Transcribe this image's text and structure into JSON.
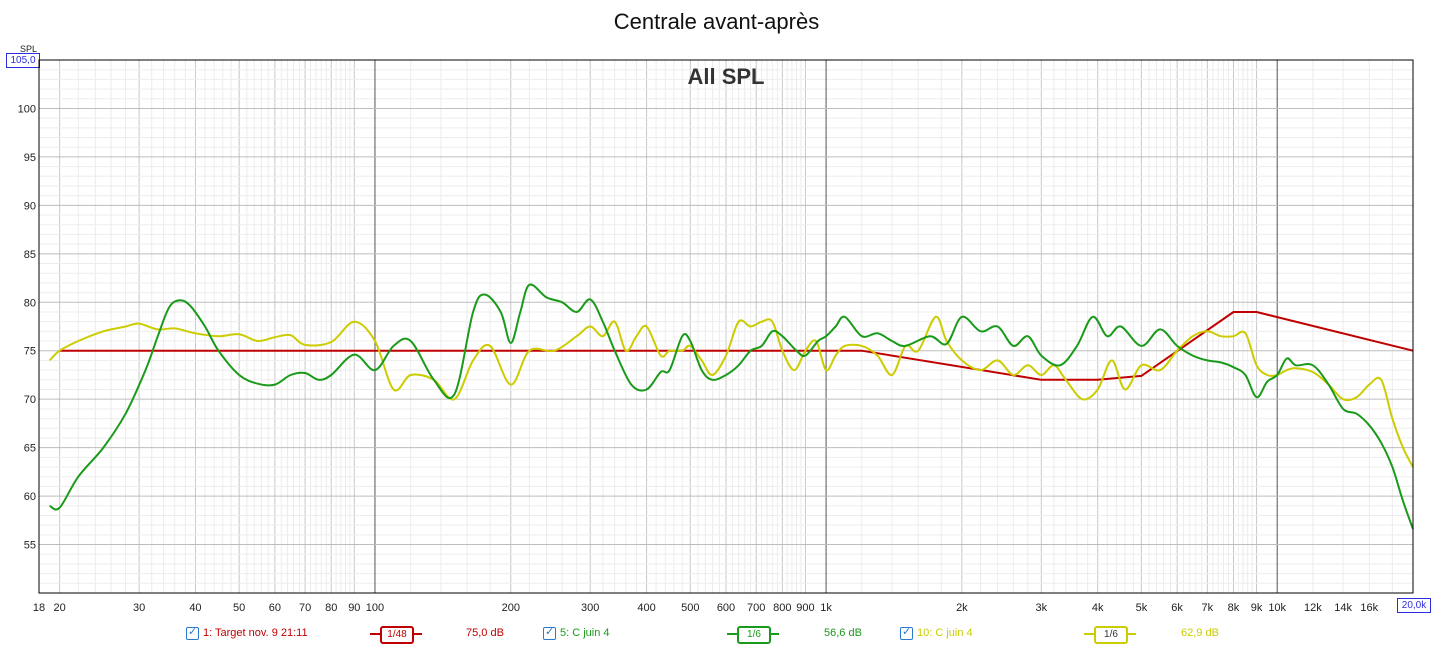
{
  "chart_data": {
    "type": "line",
    "title": "Centrale avant-après",
    "subtitle": "All SPL",
    "ylabel": "SPL",
    "x_scale": "log",
    "xlim": [
      18,
      20000
    ],
    "ylim": [
      50,
      105
    ],
    "y_ticks": [
      "100",
      "95",
      "90",
      "85",
      "80",
      "75",
      "70",
      "65",
      "60",
      "55"
    ],
    "x_ticks": [
      "18",
      "20",
      "30",
      "40",
      "50",
      "60",
      "70",
      "80",
      "90",
      "100",
      "200",
      "300",
      "400",
      "500",
      "600",
      "700",
      "800",
      "900",
      "1k",
      "2k",
      "3k",
      "4k",
      "5k",
      "6k",
      "7k",
      "8k",
      "9k",
      "10k",
      "12k",
      "14k",
      "16k"
    ],
    "y_max_label": "105,0",
    "x_max_label": "20,0k",
    "grid": true,
    "series": [
      {
        "name": "1: Target nov. 9 21:11",
        "color": "#c00000",
        "smoothing": "1/48",
        "level": "75,0 dB",
        "x": [
          20,
          1200,
          3000,
          4000,
          5000,
          8000,
          9000,
          20000
        ],
        "y": [
          75,
          75,
          72,
          72,
          72.4,
          79,
          79,
          75
        ]
      },
      {
        "name": "5: C juin 4",
        "color": "#1a9a1a",
        "smoothing": "1/6",
        "level": "56,6 dB",
        "x": [
          19,
          20,
          22,
          25,
          28,
          31,
          33,
          35,
          37,
          39,
          42,
          45,
          50,
          55,
          60,
          65,
          70,
          75,
          80,
          90,
          100,
          110,
          120,
          135,
          150,
          165,
          175,
          190,
          200,
          210,
          220,
          240,
          260,
          280,
          300,
          320,
          340,
          370,
          400,
          430,
          450,
          480,
          500,
          530,
          560,
          600,
          640,
          680,
          720,
          760,
          800,
          860,
          900,
          960,
          1000,
          1050,
          1100,
          1200,
          1300,
          1400,
          1500,
          1700,
          1850,
          2000,
          2200,
          2400,
          2600,
          2800,
          3000,
          3300,
          3600,
          3900,
          4200,
          4500,
          5000,
          5500,
          6000,
          6500,
          7000,
          7500,
          8000,
          8500,
          9000,
          9500,
          10000,
          10500,
          11000,
          12000,
          13000,
          14000,
          15000,
          16000,
          17000,
          18000,
          19000,
          20000
        ],
        "y": [
          59,
          58.8,
          62,
          65,
          68.5,
          73,
          76.5,
          79.5,
          80.2,
          79.6,
          77.5,
          75,
          72.5,
          71.6,
          71.5,
          72.5,
          72.7,
          72.0,
          72.5,
          74.6,
          73.0,
          75.5,
          76.0,
          72.0,
          70.5,
          79.0,
          80.8,
          79.0,
          75.8,
          79.0,
          81.8,
          80.5,
          80.0,
          79.0,
          80.3,
          78.0,
          75.0,
          71.5,
          71.0,
          72.8,
          73.0,
          76.5,
          76.0,
          73.0,
          72.0,
          72.5,
          73.5,
          75.0,
          75.5,
          77.0,
          76.5,
          75.0,
          74.5,
          76.0,
          76.5,
          77.5,
          78.5,
          76.5,
          76.8,
          76.0,
          75.5,
          76.5,
          75.7,
          78.5,
          77.0,
          77.5,
          75.5,
          76.5,
          74.5,
          73.5,
          75.5,
          78.5,
          76.5,
          77.5,
          75.5,
          77.2,
          75.5,
          74.5,
          74.0,
          73.8,
          73.3,
          72.5,
          70.2,
          71.8,
          72.5,
          74.2,
          73.5,
          73.5,
          71.5,
          69.0,
          68.5,
          67.3,
          65.5,
          63.0,
          59.5,
          56.6
        ]
      },
      {
        "name": "10: C juin 4",
        "color": "#cccc00",
        "smoothing": "1/6",
        "level": "62,9 dB",
        "x": [
          19,
          20,
          22,
          25,
          28,
          30,
          33,
          36,
          40,
          45,
          50,
          55,
          60,
          65,
          70,
          80,
          90,
          100,
          110,
          120,
          135,
          150,
          165,
          180,
          200,
          220,
          250,
          280,
          300,
          320,
          340,
          360,
          380,
          400,
          430,
          450,
          480,
          500,
          530,
          560,
          600,
          640,
          680,
          720,
          760,
          800,
          850,
          900,
          950,
          1000,
          1050,
          1100,
          1200,
          1300,
          1400,
          1500,
          1600,
          1750,
          1850,
          2000,
          2200,
          2400,
          2600,
          2800,
          3000,
          3200,
          3400,
          3700,
          4000,
          4300,
          4600,
          5000,
          5500,
          6000,
          6500,
          7000,
          7500,
          8000,
          8500,
          9000,
          9500,
          10000,
          10500,
          11000,
          12000,
          13000,
          14000,
          15000,
          16000,
          17000,
          18000,
          19000,
          20000
        ],
        "y": [
          74,
          75,
          76,
          77,
          77.5,
          77.8,
          77.2,
          77.3,
          76.8,
          76.5,
          76.7,
          76,
          76.4,
          76.6,
          75.6,
          75.9,
          78.0,
          76.0,
          71.0,
          72.5,
          72.0,
          70.0,
          74.0,
          75.5,
          71.5,
          75.0,
          75.0,
          76.5,
          77.5,
          76.5,
          78.0,
          75.0,
          76.5,
          77.5,
          74.5,
          75.0,
          75.0,
          75.5,
          74.0,
          72.5,
          74.5,
          78.0,
          77.5,
          78.0,
          78.0,
          75.0,
          73.0,
          75.0,
          76.0,
          73.0,
          74.5,
          75.5,
          75.5,
          74.5,
          72.5,
          75.5,
          75.0,
          78.5,
          76.0,
          74.0,
          73.0,
          74.0,
          72.5,
          73.5,
          72.5,
          73.5,
          72.0,
          70.0,
          71.0,
          74.0,
          71.0,
          73.5,
          73.0,
          75.0,
          76.5,
          77.0,
          76.5,
          76.5,
          76.8,
          73.5,
          72.5,
          72.5,
          73.0,
          73.2,
          72.8,
          71.5,
          70.0,
          70.2,
          71.5,
          72.0,
          68.0,
          65.0,
          63.0
        ]
      }
    ]
  }
}
